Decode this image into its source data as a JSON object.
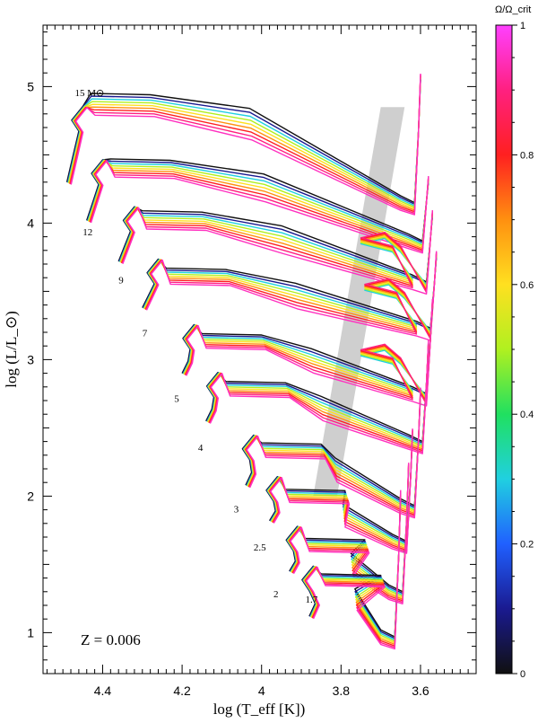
{
  "chart_data": {
    "type": "line",
    "title": "",
    "xlabel": "log (T_eff [K])",
    "ylabel": "log (L/L_⊙)",
    "xlim": [
      4.55,
      3.46
    ],
    "ylim": [
      0.7,
      5.45
    ],
    "x_inverted": true,
    "x_ticks": [
      "4.4",
      "4.2",
      "4",
      "3.8",
      "3.6"
    ],
    "x_tick_values": [
      4.4,
      4.2,
      4.0,
      3.8,
      3.6
    ],
    "y_ticks": [
      "1",
      "2",
      "3",
      "4",
      "5"
    ],
    "y_tick_values": [
      1,
      2,
      3,
      4,
      5
    ],
    "annotation": "Z = 0.006",
    "colorbar": {
      "label": "Ω/Ω_crit",
      "range": [
        0,
        1
      ],
      "ticks": [
        "0",
        "0.2",
        "0.4",
        "0.6",
        "0.8",
        "1"
      ],
      "tick_values": [
        0,
        0.2,
        0.4,
        0.6,
        0.8,
        1
      ],
      "colormap": [
        "#101010",
        "#1a1a90",
        "#2060ff",
        "#20d0e0",
        "#20e060",
        "#b0f020",
        "#ffe020",
        "#ff9010",
        "#ff2020",
        "#ff2080",
        "#ff40ff"
      ]
    },
    "instability_strip": [
      {
        "x": 3.87,
        "y": 2.0
      },
      {
        "x": 3.81,
        "y": 2.0
      },
      {
        "x": 3.64,
        "y": 4.85
      },
      {
        "x": 3.7,
        "y": 4.85
      }
    ],
    "mass_labels": [
      {
        "text": "15",
        "unit": "M⊙",
        "x": 4.47,
        "y": 4.93
      },
      {
        "text": "12",
        "x": 4.45,
        "y": 3.91
      },
      {
        "text": "9",
        "x": 4.36,
        "y": 3.56
      },
      {
        "text": "7",
        "x": 4.3,
        "y": 3.17
      },
      {
        "text": "5",
        "x": 4.22,
        "y": 2.69
      },
      {
        "text": "4",
        "x": 4.16,
        "y": 2.33
      },
      {
        "text": "3",
        "x": 4.07,
        "y": 1.88
      },
      {
        "text": "2.5",
        "x": 4.02,
        "y": 1.6
      },
      {
        "text": "2",
        "x": 3.97,
        "y": 1.26
      },
      {
        "text": "1.7",
        "x": 3.89,
        "y": 1.22
      }
    ],
    "tracks": [
      {
        "mass": "15",
        "zams_x": 4.49,
        "zams_y": 4.3,
        "hook_x": 4.44,
        "top_y": 4.98,
        "fan": 0.3,
        "end_x": 3.6,
        "end_y": 5.05,
        "has_loop": false
      },
      {
        "mass": "12",
        "zams_x": 4.44,
        "zams_y": 4.02,
        "hook_x": 4.39,
        "top_y": 4.5,
        "fan": 0.25,
        "end_x": 3.58,
        "end_y": 4.3,
        "has_loop": false
      },
      {
        "mass": "9",
        "zams_x": 4.36,
        "zams_y": 3.72,
        "hook_x": 4.31,
        "top_y": 4.12,
        "fan": 0.25,
        "end_x": 3.57,
        "end_y": 4.05,
        "has_loop": true
      },
      {
        "mass": "7",
        "zams_x": 4.3,
        "zams_y": 3.38,
        "hook_x": 4.25,
        "top_y": 3.7,
        "fan": 0.22,
        "end_x": 3.56,
        "end_y": 3.75,
        "has_loop": true
      },
      {
        "mass": "5",
        "zams_x": 4.2,
        "zams_y": 2.9,
        "hook_x": 4.16,
        "top_y": 3.22,
        "fan": 0.2,
        "end_x": 3.57,
        "end_y": 3.4,
        "has_loop": true
      },
      {
        "mass": "4",
        "zams_x": 4.14,
        "zams_y": 2.55,
        "hook_x": 4.1,
        "top_y": 2.87,
        "fan": 0.2,
        "end_x": 3.58,
        "end_y": 3.1,
        "has_loop": false
      },
      {
        "mass": "3",
        "zams_x": 4.04,
        "zams_y": 2.08,
        "hook_x": 4.01,
        "top_y": 2.42,
        "fan": 0.2,
        "end_x": 3.6,
        "end_y": 2.75,
        "has_loop": false
      },
      {
        "mass": "2.5",
        "zams_x": 3.98,
        "zams_y": 1.82,
        "hook_x": 3.95,
        "top_y": 2.08,
        "fan": 0.18,
        "end_x": 3.62,
        "end_y": 2.45,
        "has_loop": false
      },
      {
        "mass": "2",
        "zams_x": 3.93,
        "zams_y": 1.45,
        "hook_x": 3.9,
        "top_y": 1.72,
        "fan": 0.18,
        "end_x": 3.63,
        "end_y": 2.2,
        "has_loop": false
      },
      {
        "mass": "1.7",
        "zams_x": 3.88,
        "zams_y": 1.12,
        "hook_x": 3.86,
        "top_y": 1.46,
        "fan": 0.16,
        "end_x": 3.65,
        "end_y": 2.0,
        "has_loop": false
      }
    ],
    "rotation_levels": [
      0,
      0.1,
      0.3,
      0.5,
      0.6,
      0.7,
      0.8,
      0.9,
      0.95
    ]
  }
}
